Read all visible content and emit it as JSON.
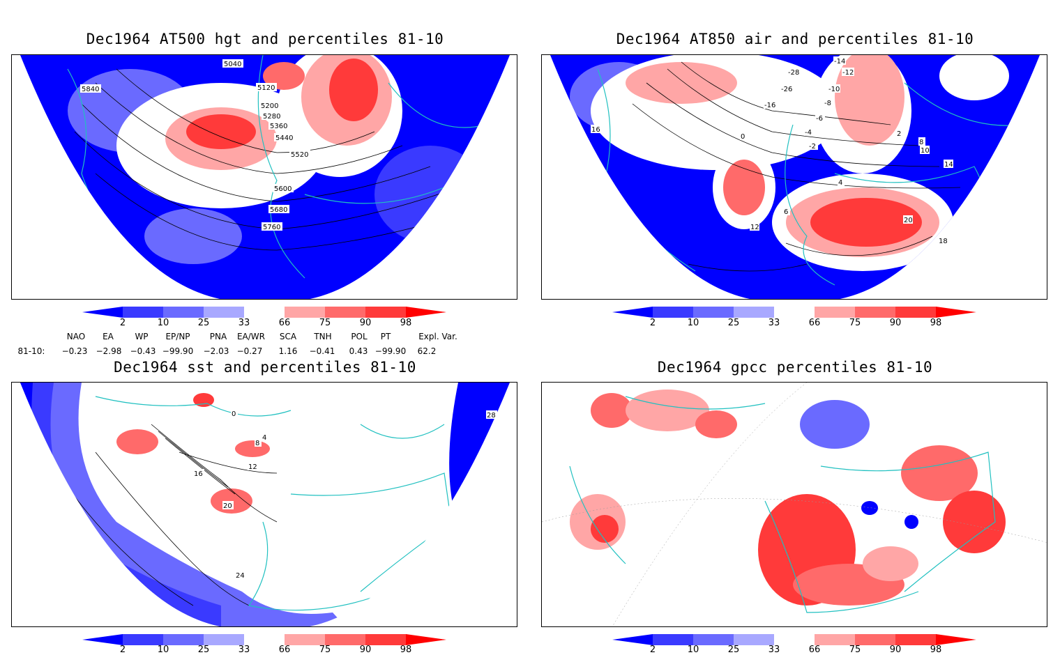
{
  "panels": [
    {
      "title": "Dec1964 AT500 hgt and percentiles 81-10",
      "contours": [
        "5040",
        "5120",
        "5200",
        "5280",
        "5360",
        "5440",
        "5520",
        "5600",
        "5680",
        "5760",
        "5840"
      ]
    },
    {
      "title": "Dec1964 AT850 air and percentiles 81-10",
      "contours": [
        "-28",
        "-26",
        "-16",
        "-14",
        "-12",
        "-10",
        "-8",
        "-6",
        "-4",
        "-2",
        "0",
        "2",
        "4",
        "6",
        "8",
        "10",
        "12",
        "14",
        "16",
        "18",
        "20"
      ]
    },
    {
      "title": "Dec1964 sst and percentiles 81-10",
      "contours": [
        "28",
        "24",
        "0",
        "4",
        "8",
        "12",
        "16",
        "20"
      ]
    },
    {
      "title": "Dec1964 gpcc percentiles 81-10",
      "contours": []
    }
  ],
  "colorbar": {
    "ticks": [
      "2",
      "10",
      "25",
      "33",
      "66",
      "75",
      "90",
      "98"
    ],
    "colors": [
      "#0000ff",
      "#3a3aff",
      "#6a6aff",
      "#a8a8ff",
      "#ffffff",
      "#ffa6a6",
      "#ff6a6a",
      "#ff3a3a",
      "#ff0000"
    ]
  },
  "indices": {
    "headers": [
      "NAO",
      "EA",
      "WP",
      "EP/NP",
      "PNA",
      "EA/WR",
      "SCA",
      "TNH",
      "POL",
      "PT",
      "Expl. Var."
    ],
    "row_label": "81-10:",
    "values": [
      "−0.23",
      "−2.98",
      "−0.43",
      "−99.90",
      "−2.03",
      "−0.27",
      "1.16",
      "−0.41",
      "0.43",
      "−99.90",
      "62.2"
    ]
  }
}
